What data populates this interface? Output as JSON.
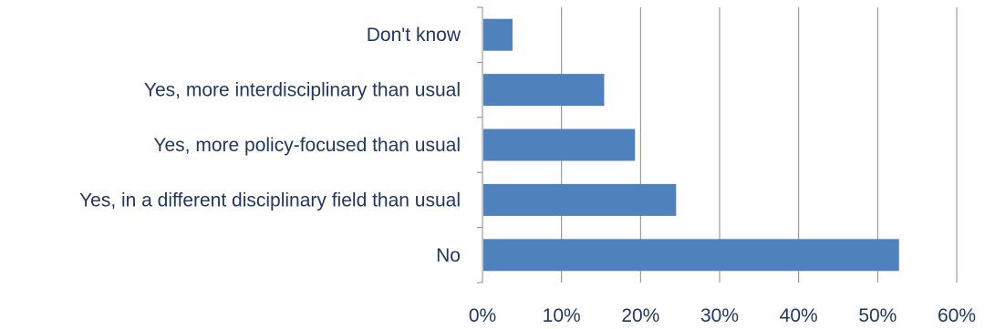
{
  "chart_data": {
    "type": "bar",
    "orientation": "horizontal",
    "categories": [
      "Don't know",
      "Yes, more interdisciplinary than usual",
      "Yes, more policy-focused than usual",
      "Yes, in a different disciplinary field than usual",
      "No"
    ],
    "values": [
      3.8,
      15.4,
      19.3,
      24.5,
      52.7
    ],
    "value_unit": "%",
    "xlim": [
      0,
      60
    ],
    "x_ticks": [
      "0%",
      "10%",
      "20%",
      "30%",
      "40%",
      "50%",
      "60%"
    ],
    "grid": "vertical",
    "bar_color": "#4f81bd",
    "grid_color": "#888888",
    "label_color": "#1f3864"
  }
}
